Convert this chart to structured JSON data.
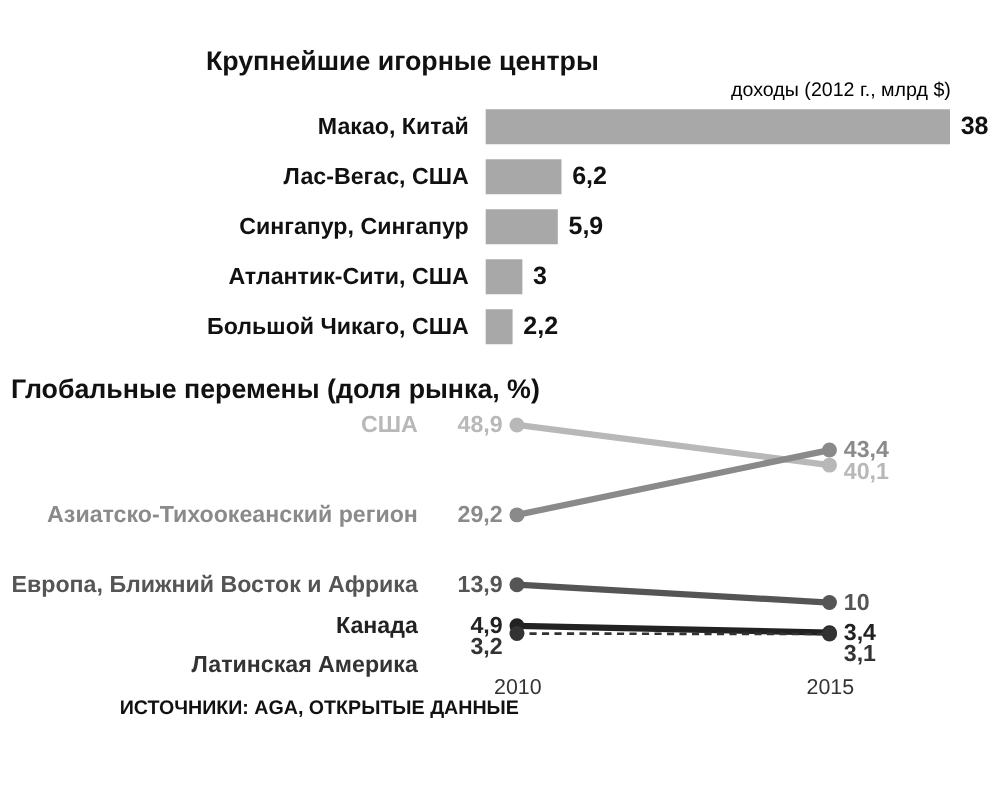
{
  "chart_data": [
    {
      "type": "bar",
      "title": "Крупнейшие игорные центры",
      "xlabel": "доходы (2012 г., млрд $)",
      "orientation": "horizontal",
      "categories": [
        "Макао, Китай",
        "Лас-Вегас, США",
        "Сингапур, Сингапур",
        "Атлантик-Сити, США",
        "Большой Чикаго, США"
      ],
      "values": [
        38,
        6.2,
        5.9,
        3,
        2.2
      ],
      "value_labels": [
        "38",
        "6,2",
        "5,9",
        "3",
        "2,2"
      ],
      "color": "#a8a8a8",
      "xlim": [
        0,
        38
      ],
      "tick_labels": "y",
      "grid": false
    },
    {
      "type": "line",
      "title": "Глобальные перемены (доля рынка, %)",
      "categories": [
        "2010",
        "2015"
      ],
      "series": [
        {
          "name": "США",
          "color": "#b8b8b8",
          "values": [
            48.9,
            40.1
          ],
          "value_labels": [
            "48,9",
            "40,1"
          ]
        },
        {
          "name": "Азиатско-Тихоокеанский регион",
          "color": "#8a8a8a",
          "values": [
            29.2,
            43.4
          ],
          "value_labels": [
            "29,2",
            "43,4"
          ]
        },
        {
          "name": "Европа, Ближний Восток и Африка",
          "color": "#555555",
          "values": [
            13.9,
            10
          ],
          "value_labels": [
            "13,9",
            "10"
          ]
        },
        {
          "name": "Канада",
          "color": "#222222",
          "values": [
            4.9,
            3.4
          ],
          "value_labels": [
            "4,9",
            "3,4"
          ]
        },
        {
          "name": "Латинская Америка",
          "color": "#333333",
          "values": [
            3.2,
            3.1
          ],
          "value_labels": [
            "3,2",
            "3,1"
          ],
          "line_style": "dashed"
        }
      ],
      "marker": "circle",
      "tick_labels": "x",
      "grid": false,
      "annotations": [
        "ИСТОЧНИКИ: AGA, ОТКРЫТЫЕ ДАННЫЕ"
      ]
    }
  ]
}
